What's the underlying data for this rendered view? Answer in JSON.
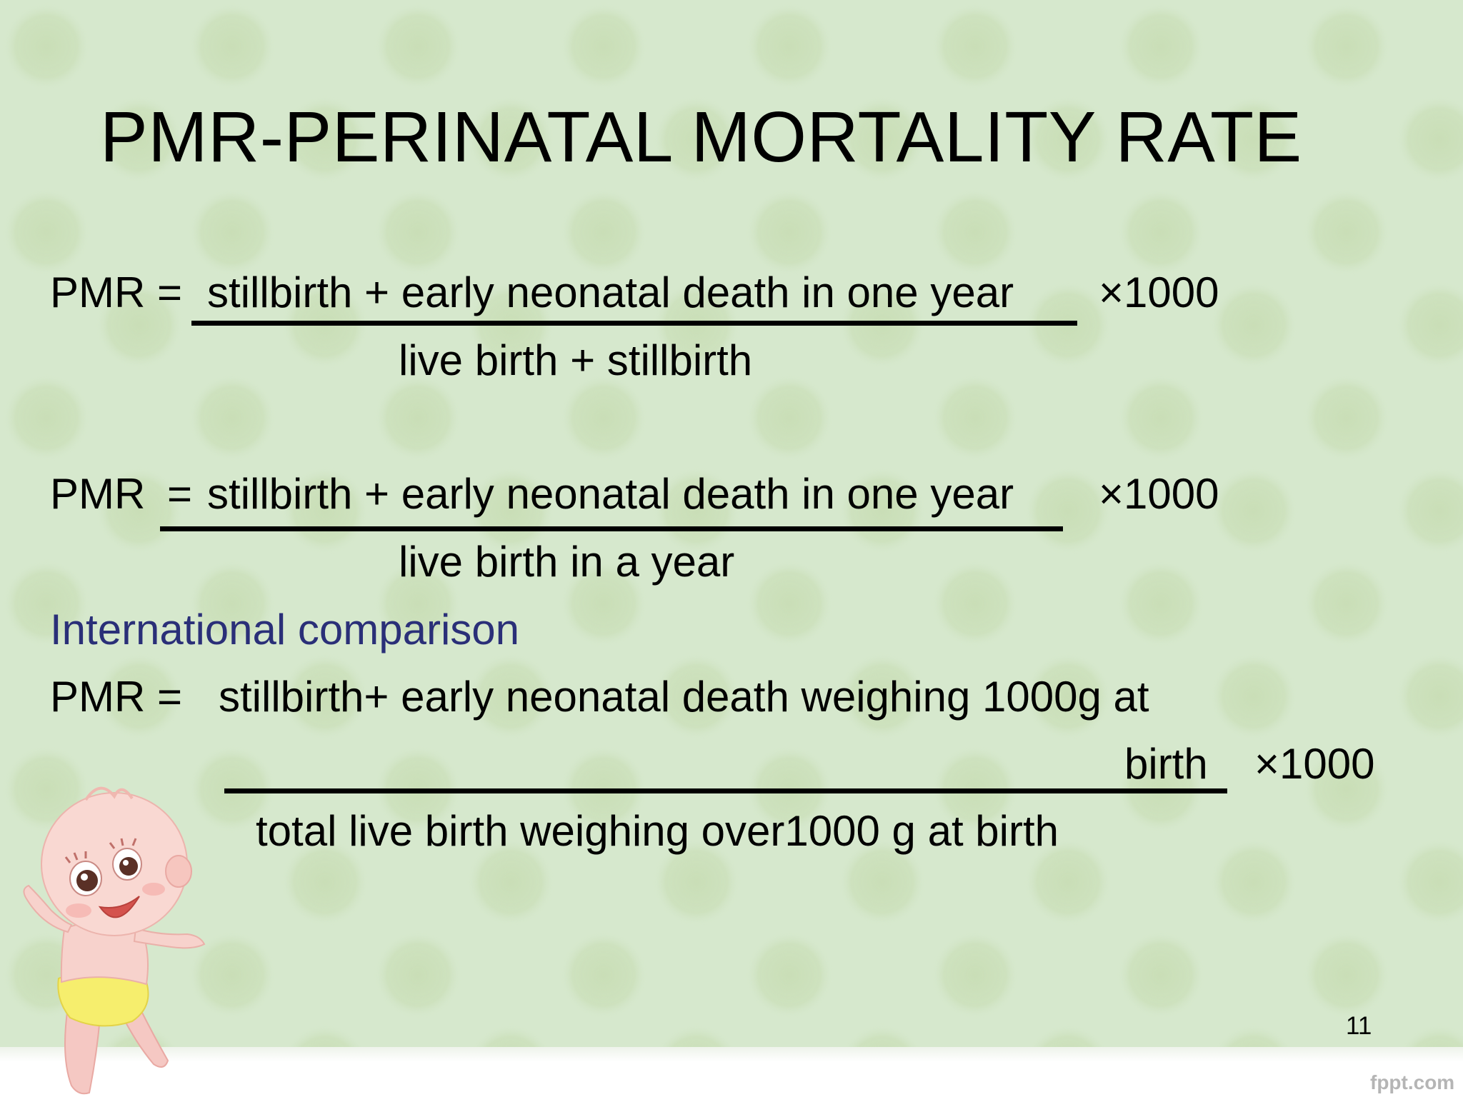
{
  "slide": {
    "title": "PMR-PERINATAL MORTALITY RATE",
    "formula1": {
      "lhs": "PMR =",
      "numerator": "stillbirth + early neonatal death in one year",
      "multiplier": "×1000",
      "denominator": "live birth + stillbirth"
    },
    "formula2": {
      "lhs": "PMR",
      "equals": "=",
      "numerator": "stillbirth + early neonatal death in one year",
      "multiplier": "×1000",
      "denominator": "live birth in a year"
    },
    "section_heading": "International comparison",
    "formula3": {
      "lhs": "PMR =",
      "numerator_line1": "stillbirth+ early neonatal death weighing 1000g at",
      "numerator_line2": "birth",
      "multiplier": "×1000",
      "denominator": "total live birth weighing over1000 g at birth"
    },
    "page_number": "11",
    "brand": "fppt.com"
  },
  "colors": {
    "background": "#d6e8cd",
    "dot": "#cadfb8",
    "heading_accent": "#2a2f78",
    "text": "#000000"
  },
  "icons": {
    "illustration": "cartoon-baby-illustration"
  }
}
